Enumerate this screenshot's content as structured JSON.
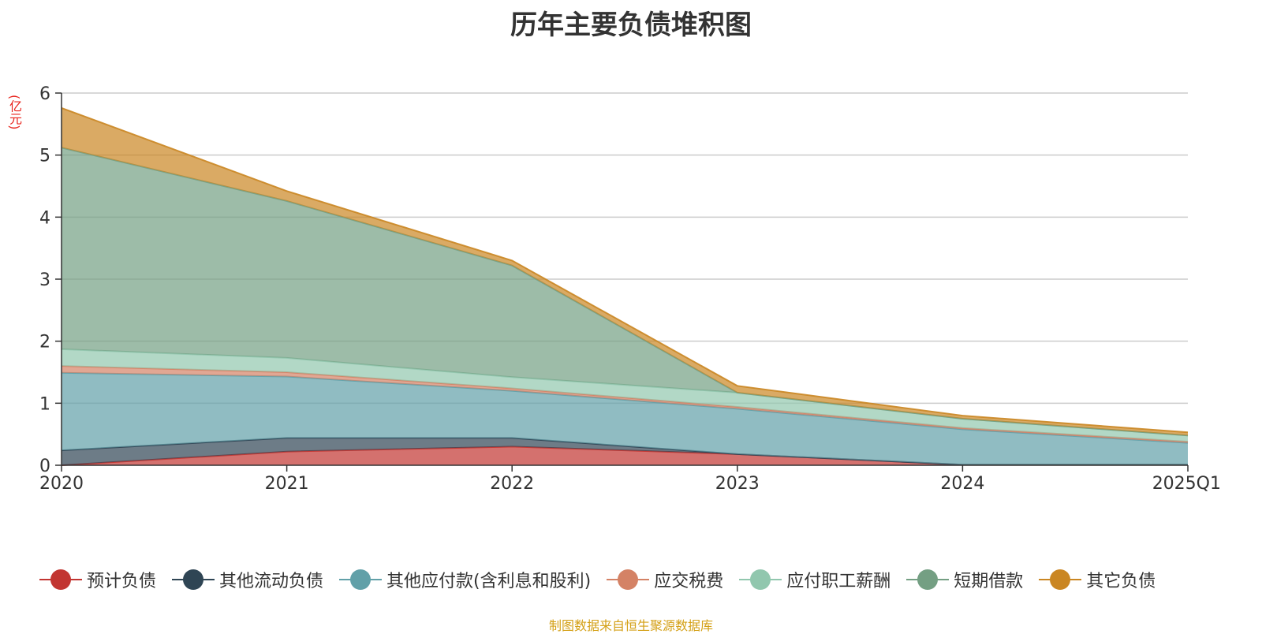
{
  "chart_data": {
    "type": "area",
    "stacked": true,
    "title": "历年主要负债堆积图",
    "unit": "(亿元)",
    "categories": [
      "2020",
      "2021",
      "2022",
      "2023",
      "2024",
      "2025Q1"
    ],
    "ylim": [
      0,
      6
    ],
    "yticks": [
      "0",
      "1",
      "2",
      "3",
      "4",
      "5",
      "6"
    ],
    "grid": true,
    "legend_position": "bottom",
    "series": [
      {
        "name": "预计负债",
        "color": "#c23531",
        "values": [
          0.0,
          0.22,
          0.3,
          0.18,
          0.01,
          0.01
        ]
      },
      {
        "name": "其他流动负债",
        "color": "#2f4554",
        "values": [
          0.24,
          0.22,
          0.14,
          0.0,
          0.0,
          0.0
        ]
      },
      {
        "name": "其他应付款(含利息和股利)",
        "color": "#61a0a8",
        "values": [
          1.25,
          0.99,
          0.76,
          0.73,
          0.57,
          0.35
        ]
      },
      {
        "name": "应交税费",
        "color": "#d48265",
        "values": [
          0.11,
          0.07,
          0.04,
          0.03,
          0.02,
          0.02
        ]
      },
      {
        "name": "应付职工薪酬",
        "color": "#91c7ae",
        "values": [
          0.27,
          0.23,
          0.18,
          0.23,
          0.15,
          0.1
        ]
      },
      {
        "name": "短期借款",
        "color": "#749f83",
        "values": [
          3.25,
          2.53,
          1.8,
          0.0,
          0.0,
          0.0
        ]
      },
      {
        "name": "其它负债",
        "color": "#ca8622",
        "values": [
          0.64,
          0.16,
          0.08,
          0.11,
          0.05,
          0.05
        ]
      }
    ]
  },
  "source_note": "制图数据来自恒生聚源数据库"
}
